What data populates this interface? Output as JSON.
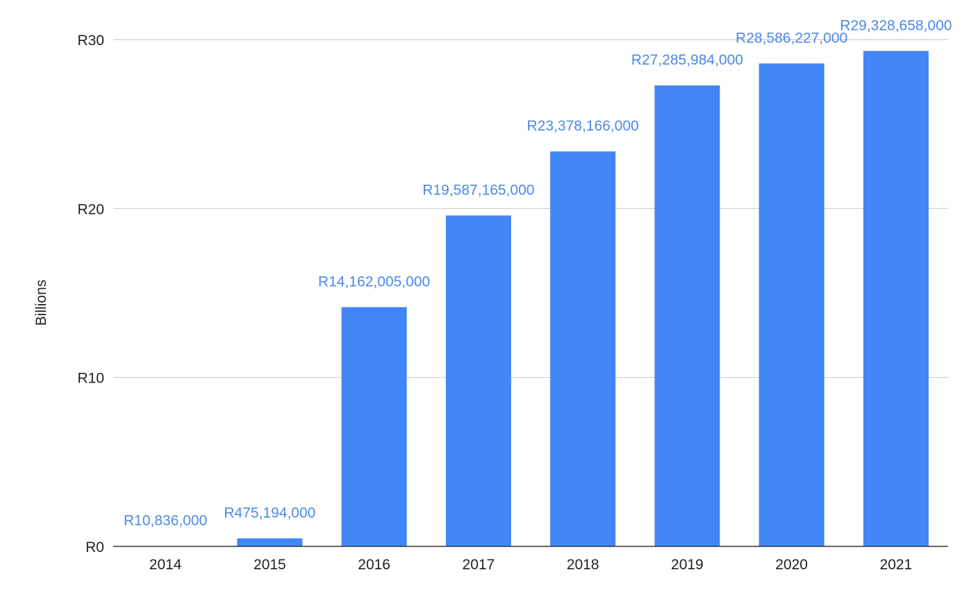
{
  "chart_data": {
    "type": "bar",
    "title": "",
    "xlabel": "",
    "ylabel": "Billions",
    "categories": [
      "2014",
      "2015",
      "2016",
      "2017",
      "2018",
      "2019",
      "2020",
      "2021"
    ],
    "values": [
      10836000,
      475194000,
      14162005000,
      19587165000,
      23378166000,
      27285984000,
      28586227000,
      29328658000
    ],
    "data_labels": [
      "R10,836,000",
      "R475,194,000",
      "R14,162,005,000",
      "R19,587,165,000",
      "R23,378,166,000",
      "R27,285,984,000",
      "R28,586,227,000",
      "R29,328,658,000"
    ],
    "ylim": [
      0,
      30000000000
    ],
    "yticks": [
      0,
      10000000000,
      20000000000,
      30000000000
    ],
    "ytick_labels": [
      "R0",
      "R10",
      "R20",
      "R30"
    ],
    "grid": true,
    "legend": "none",
    "colors": {
      "bar": "#4285f4",
      "data_label": "#4a88e8",
      "gridline": "#cccccc",
      "baseline": "#333333",
      "text": "#222222"
    }
  }
}
